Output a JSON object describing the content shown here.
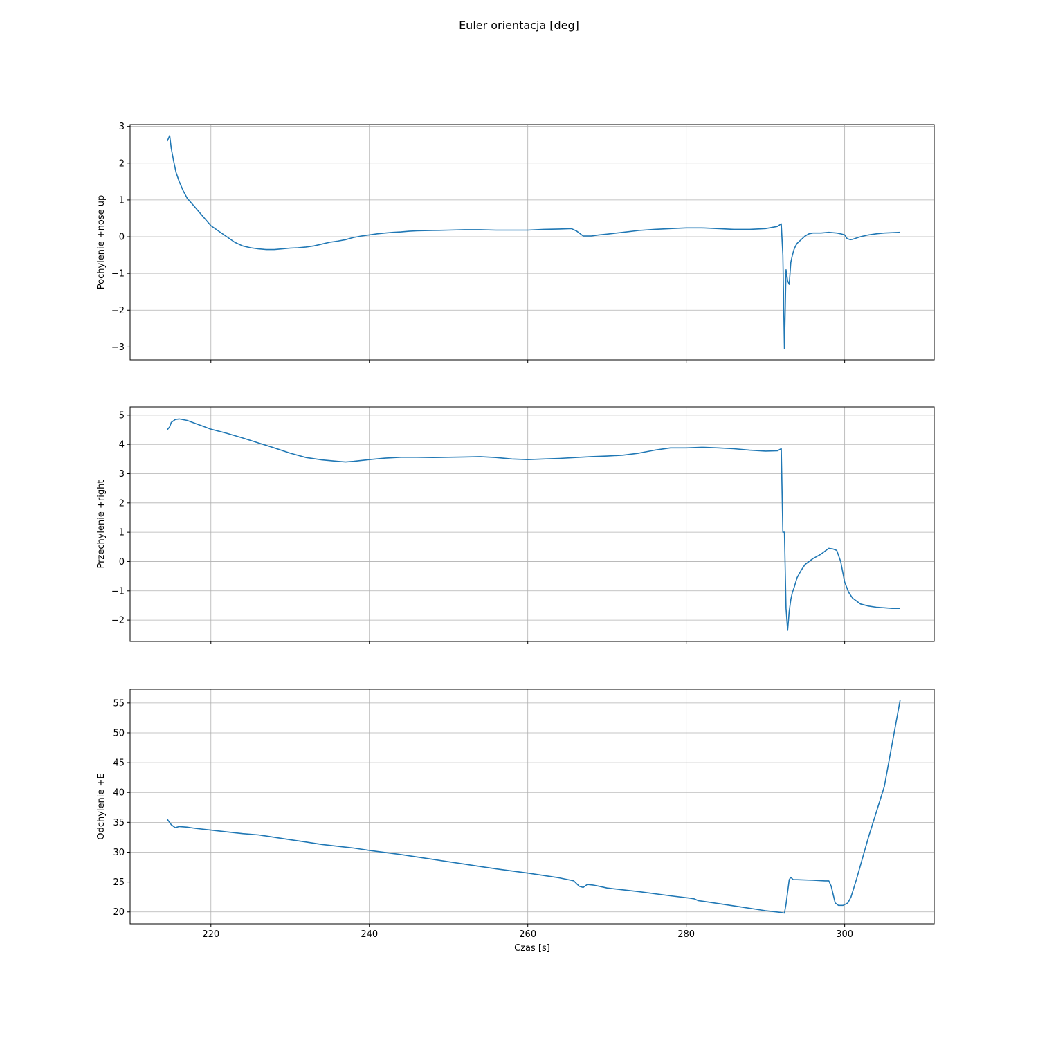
{
  "figure": {
    "title": "Euler orientacja [deg]"
  },
  "colors": {
    "line": "#1f77b4",
    "grid": "#b0b0b0",
    "axes": "#000000"
  },
  "chart_data": [
    {
      "type": "line",
      "title": "",
      "xlabel": "",
      "ylabel": "Pochylenie +nose up",
      "xlim": [
        209.8,
        311.3
      ],
      "ylim": [
        -3.35,
        3.05
      ],
      "xticks": [
        220,
        240,
        260,
        280,
        300
      ],
      "yticks": [
        -3,
        -2,
        -1,
        0,
        1,
        2,
        3
      ],
      "show_xticklabels": false,
      "grid": true,
      "series": [
        {
          "x": [
            214.5,
            214.8,
            215.0,
            215.3,
            215.6,
            216.0,
            216.5,
            217.0,
            218.0,
            219.0,
            220.0,
            221.0,
            222.0,
            223.0,
            224.0,
            225.0,
            226.0,
            227.0,
            228.0,
            229.0,
            230.0,
            231.0,
            232.0,
            233.0,
            234.0,
            235.0,
            236.0,
            237.0,
            238.0,
            239.0,
            240.0,
            241.0,
            242.0,
            243.0,
            244.0,
            245.0,
            246.0,
            248.0,
            250.0,
            252.0,
            254.0,
            256.0,
            258.0,
            260.0,
            262.0,
            264.0,
            265.5,
            266.2,
            267.0,
            268.0,
            269.0,
            270.0,
            272.0,
            274.0,
            276.0,
            278.0,
            280.0,
            282.0,
            284.0,
            286.0,
            288.0,
            290.0,
            291.5,
            292.0,
            292.2,
            292.4,
            292.6,
            292.8,
            293.0,
            293.2,
            293.4,
            293.6,
            293.8,
            294.0,
            294.5,
            295.0,
            295.5,
            296.0,
            296.5,
            297.0,
            298.0,
            299.0,
            299.5,
            300.0,
            300.3,
            300.7,
            301.0,
            302.0,
            303.0,
            304.0,
            305.0,
            306.0,
            307.0
          ],
          "y": [
            2.6,
            2.75,
            2.4,
            2.05,
            1.75,
            1.5,
            1.25,
            1.05,
            0.8,
            0.55,
            0.3,
            0.15,
            0.0,
            -0.15,
            -0.25,
            -0.3,
            -0.33,
            -0.35,
            -0.35,
            -0.33,
            -0.31,
            -0.3,
            -0.28,
            -0.25,
            -0.2,
            -0.15,
            -0.12,
            -0.08,
            -0.02,
            0.02,
            0.05,
            0.08,
            0.1,
            0.12,
            0.13,
            0.15,
            0.16,
            0.17,
            0.18,
            0.19,
            0.19,
            0.18,
            0.18,
            0.18,
            0.2,
            0.21,
            0.22,
            0.15,
            0.02,
            0.02,
            0.05,
            0.07,
            0.12,
            0.17,
            0.2,
            0.22,
            0.24,
            0.24,
            0.22,
            0.2,
            0.2,
            0.22,
            0.28,
            0.35,
            -0.5,
            -3.05,
            -0.9,
            -1.2,
            -1.3,
            -0.7,
            -0.5,
            -0.35,
            -0.25,
            -0.18,
            -0.08,
            0.02,
            0.08,
            0.1,
            0.1,
            0.1,
            0.12,
            0.1,
            0.08,
            0.05,
            -0.05,
            -0.08,
            -0.07,
            0.0,
            0.05,
            0.08,
            0.1,
            0.11,
            0.12
          ]
        }
      ]
    },
    {
      "type": "line",
      "title": "",
      "xlabel": "",
      "ylabel": "Przechylenie +right",
      "xlim": [
        209.8,
        311.3
      ],
      "ylim": [
        -2.73,
        5.28
      ],
      "xticks": [
        220,
        240,
        260,
        280,
        300
      ],
      "yticks": [
        -2,
        -1,
        0,
        1,
        2,
        3,
        4,
        5
      ],
      "show_xticklabels": false,
      "grid": true,
      "series": [
        {
          "x": [
            214.5,
            214.8,
            215.0,
            215.5,
            216.0,
            217.0,
            218.0,
            219.0,
            220.0,
            222.0,
            224.0,
            226.0,
            228.0,
            230.0,
            232.0,
            234.0,
            236.0,
            237.0,
            238.0,
            240.0,
            242.0,
            244.0,
            246.0,
            248.0,
            250.0,
            252.0,
            254.0,
            256.0,
            258.0,
            260.0,
            262.0,
            264.0,
            266.0,
            268.0,
            270.0,
            272.0,
            274.0,
            276.0,
            278.0,
            280.0,
            282.0,
            284.0,
            286.0,
            288.0,
            290.0,
            291.5,
            292.0,
            292.2,
            292.4,
            292.6,
            292.8,
            293.0,
            293.2,
            293.4,
            293.6,
            294.0,
            294.5,
            295.0,
            296.0,
            297.0,
            298.0,
            298.5,
            299.0,
            299.5,
            300.0,
            300.5,
            301.0,
            302.0,
            303.0,
            304.0,
            305.0,
            306.0,
            307.0
          ],
          "y": [
            4.5,
            4.6,
            4.75,
            4.85,
            4.87,
            4.82,
            4.72,
            4.62,
            4.52,
            4.38,
            4.22,
            4.05,
            3.88,
            3.7,
            3.55,
            3.47,
            3.42,
            3.4,
            3.42,
            3.48,
            3.53,
            3.56,
            3.56,
            3.55,
            3.56,
            3.57,
            3.58,
            3.55,
            3.5,
            3.48,
            3.5,
            3.52,
            3.55,
            3.58,
            3.6,
            3.63,
            3.7,
            3.8,
            3.88,
            3.88,
            3.9,
            3.88,
            3.85,
            3.8,
            3.77,
            3.78,
            3.85,
            1.0,
            1.0,
            -1.6,
            -2.35,
            -1.7,
            -1.3,
            -1.05,
            -0.9,
            -0.55,
            -0.3,
            -0.1,
            0.1,
            0.25,
            0.45,
            0.43,
            0.38,
            0.0,
            -0.7,
            -1.05,
            -1.25,
            -1.45,
            -1.52,
            -1.56,
            -1.58,
            -1.6,
            -1.6
          ]
        }
      ]
    },
    {
      "type": "line",
      "title": "",
      "xlabel": "Czas [s]",
      "ylabel": "Odchylenie +E",
      "xlim": [
        209.8,
        311.3
      ],
      "ylim": [
        18.0,
        57.3
      ],
      "xticks": [
        220,
        240,
        260,
        280,
        300
      ],
      "yticks": [
        20,
        25,
        30,
        35,
        40,
        45,
        50,
        55
      ],
      "show_xticklabels": true,
      "grid": true,
      "series": [
        {
          "x": [
            214.5,
            215.0,
            215.5,
            216.0,
            217.0,
            218.0,
            220.0,
            222.0,
            224.0,
            226.0,
            228.0,
            230.0,
            232.0,
            234.0,
            236.0,
            238.0,
            240.0,
            244.0,
            248.0,
            252.0,
            254.0,
            256.0,
            260.0,
            264.0,
            265.8,
            266.5,
            267.0,
            267.5,
            268.2,
            269.0,
            270.0,
            274.0,
            278.0,
            280.5,
            281.0,
            281.5,
            282.5,
            286.0,
            290.0,
            292.0,
            292.4,
            292.6,
            293.0,
            293.2,
            293.5,
            294.0,
            296.0,
            297.5,
            298.0,
            298.3,
            298.8,
            299.2,
            299.8,
            300.4,
            300.8,
            301.5,
            303.0,
            305.0,
            307.0
          ],
          "y": [
            35.5,
            34.6,
            34.1,
            34.3,
            34.2,
            34.0,
            33.7,
            33.4,
            33.1,
            32.9,
            32.5,
            32.1,
            31.7,
            31.3,
            31.0,
            30.7,
            30.3,
            29.6,
            28.8,
            28.0,
            27.6,
            27.2,
            26.5,
            25.7,
            25.2,
            24.3,
            24.1,
            24.6,
            24.5,
            24.3,
            24.0,
            23.4,
            22.7,
            22.3,
            22.2,
            21.9,
            21.7,
            21.0,
            20.2,
            19.9,
            19.8,
            21.3,
            25.4,
            25.8,
            25.4,
            25.4,
            25.3,
            25.2,
            25.2,
            24.3,
            21.5,
            21.1,
            21.1,
            21.5,
            22.5,
            25.5,
            32.5,
            41.0,
            55.5
          ]
        }
      ]
    }
  ]
}
